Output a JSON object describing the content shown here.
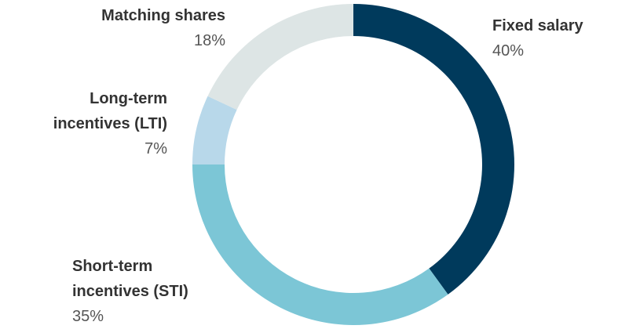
{
  "chart_data": {
    "type": "donut",
    "categories": [
      "Fixed salary",
      "Short-term incentives (STI)",
      "Long-term incentives (LTI)",
      "Matching shares"
    ],
    "values": [
      40,
      35,
      7,
      18
    ],
    "value_labels": [
      "40%",
      "35%",
      "7%",
      "18%"
    ],
    "colors": [
      "#003a5c",
      "#7cc6d6",
      "#b8d8ea",
      "#dde5e5"
    ]
  }
}
